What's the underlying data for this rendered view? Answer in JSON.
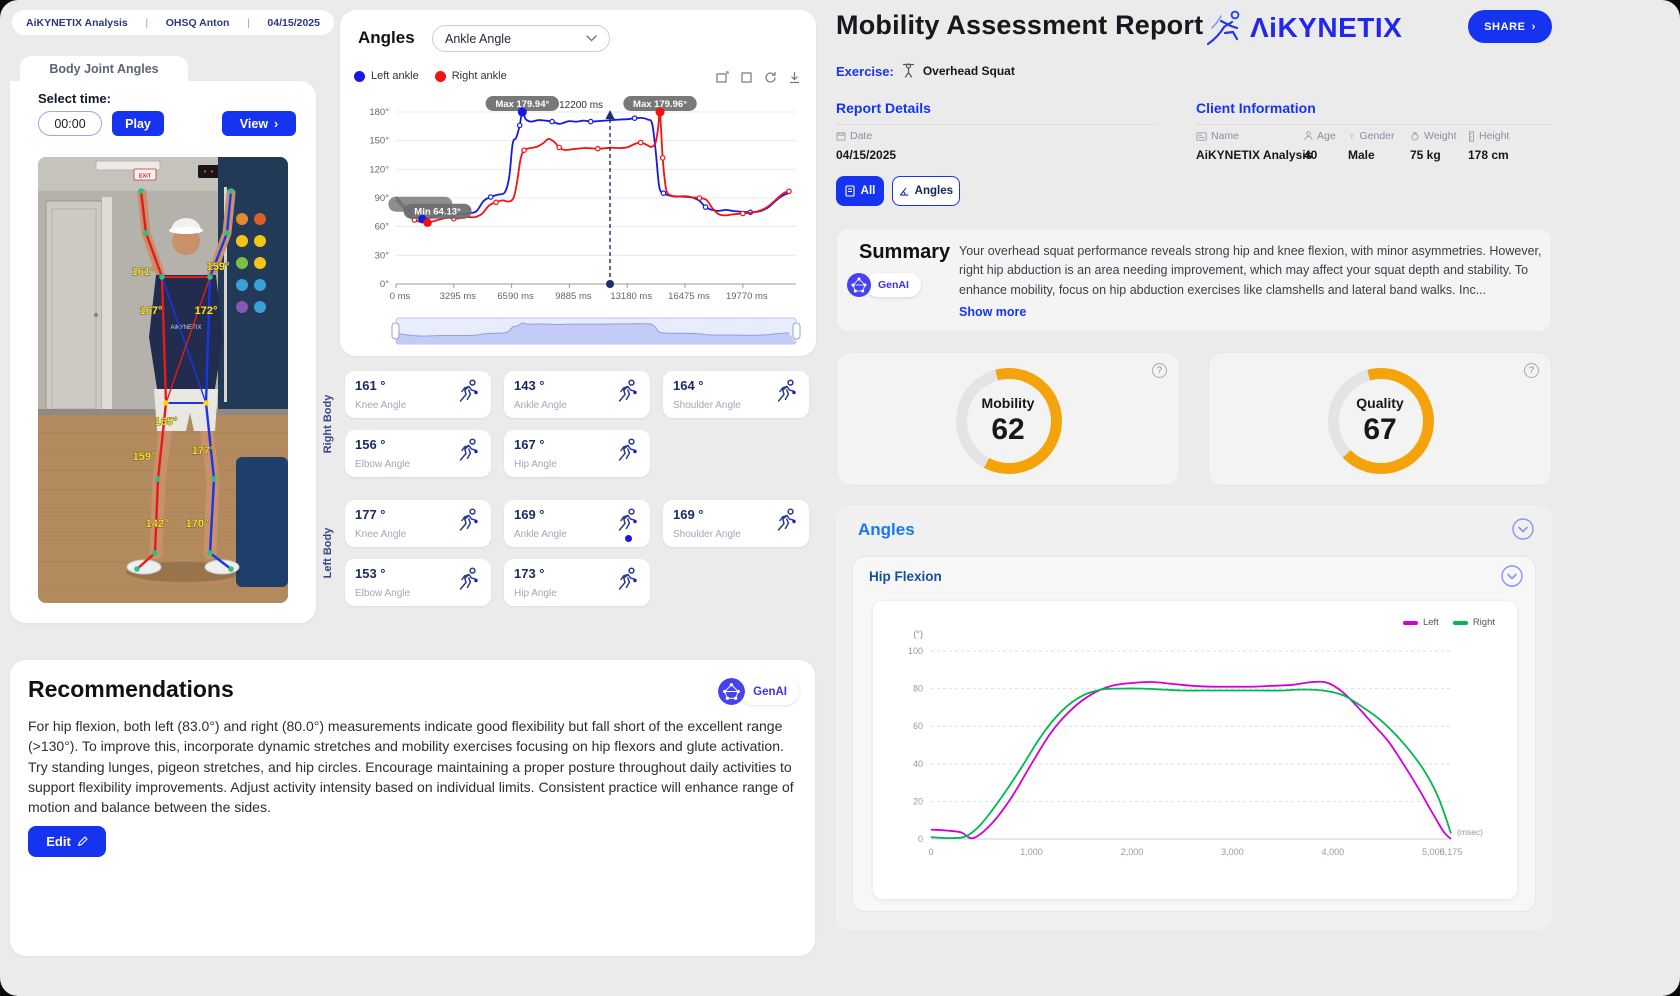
{
  "header_chip": {
    "app_name": "AiKYNETIX Analysis",
    "session": "OHSQ Anton",
    "date": "04/15/2025"
  },
  "body_joint_panel": {
    "tab": "Body Joint Angles",
    "select_time_label": "Select time:",
    "time_value": "00:00",
    "play_label": "Play",
    "view_label": "View",
    "video": {
      "shirt_text": "AiKYNETIX",
      "exit_sign": "EXIT",
      "overlay_angles": [
        "161°",
        "159°",
        "167°",
        "172°",
        "165°",
        "159°",
        "177°",
        "142°",
        "170°"
      ]
    }
  },
  "angles_panel": {
    "title": "Angles",
    "dropdown_value": "Ankle Angle",
    "legend": [
      {
        "label": "Left ankle",
        "color": "#1717e8"
      },
      {
        "label": "Right ankle",
        "color": "#f31212"
      }
    ],
    "right_body": {
      "group_label": "Right Body",
      "cards": [
        {
          "value": "161 °",
          "label": "Knee Angle"
        },
        {
          "value": "143 °",
          "label": "Ankle Angle"
        },
        {
          "value": "164 °",
          "label": "Shoulder Angle"
        },
        {
          "value": "156 °",
          "label": "Elbow Angle"
        },
        {
          "value": "167 °",
          "label": "Hip Angle"
        }
      ]
    },
    "left_body": {
      "group_label": "Left Body",
      "cards": [
        {
          "value": "177 °",
          "label": "Knee Angle"
        },
        {
          "value": "169 °",
          "label": "Ankle Angle"
        },
        {
          "value": "169 °",
          "label": "Shoulder Angle"
        },
        {
          "value": "153 °",
          "label": "Elbow Angle"
        },
        {
          "value": "173 °",
          "label": "Hip Angle"
        }
      ]
    }
  },
  "recommendations": {
    "title": "Recommendations",
    "genai_label": "GenAI",
    "text": "For hip flexion, both left (83.0°) and right (80.0°) measurements indicate good flexibility but fall short of the excellent range (>130°). To improve this, incorporate dynamic stretches and mobility exercises focusing on hip flexors and glute activation. Try standing lunges, pigeon stretches, and hip circles. Encourage maintaining a proper posture throughout daily activities to support flexibility improvements. Adjust activity intensity based on individual limits. Consistent practice will enhance range of motion and balance between the sides.",
    "edit_label": "Edit"
  },
  "report": {
    "title": "Mobility Assessment Report",
    "brand": "ΛiKYNETIX",
    "share_label": "SHARE",
    "exercise_label": "Exercise:",
    "exercise_value": "Overhead Squat",
    "details": {
      "heading": "Report Details",
      "date_label": "Date",
      "date_value": "04/15/2025"
    },
    "client": {
      "heading": "Client Information",
      "name_label": "Name",
      "name_value": "AiKYNETIX Analysis",
      "age_label": "Age",
      "age_value": "40",
      "gender_label": "Gender",
      "gender_value": "Male",
      "weight_label": "Weight",
      "weight_value": "75 kg",
      "height_label": "Height",
      "height_value": "178 cm"
    },
    "filters": {
      "all_label": "All",
      "angles_label": "Angles"
    },
    "summary": {
      "heading": "Summary",
      "genai_label": "GenAI",
      "text": "Your overhead squat performance reveals strong hip and knee flexion, with minor asymmetries. However, right hip abduction is an area needing improvement, which may affect your squat depth and stability. To enhance mobility, focus on hip abduction exercises like clamshells and lateral band walks. Inc...",
      "show_more": "Show more"
    },
    "gauges": [
      {
        "label": "Mobility",
        "value": 62
      },
      {
        "label": "Quality",
        "value": 67
      }
    ],
    "angles_section": {
      "heading": "Angles",
      "subheading": "Hip Flexion",
      "legend": [
        {
          "label": "Left",
          "color": "#d400d4"
        },
        {
          "label": "Right",
          "color": "#00b850"
        }
      ]
    }
  },
  "chart_data": [
    {
      "type": "line",
      "title": "Ankle Angle",
      "x_unit": "ms",
      "xlim": [
        0,
        22800
      ],
      "ylim": [
        0,
        180
      ],
      "x_ticks": [
        {
          "v": 0,
          "label": "0 ms"
        },
        {
          "v": 3295,
          "label": "3295 ms"
        },
        {
          "v": 6590,
          "label": "6590 ms"
        },
        {
          "v": 9885,
          "label": "9885 ms"
        },
        {
          "v": 13180,
          "label": "13180 ms"
        },
        {
          "v": 16475,
          "label": "16475 ms"
        },
        {
          "v": 19770,
          "label": "19770 ms"
        }
      ],
      "y_ticks": [
        {
          "v": 0,
          "label": "0°"
        },
        {
          "v": 30,
          "label": "30°"
        },
        {
          "v": 60,
          "label": "60°"
        },
        {
          "v": 90,
          "label": "90°"
        },
        {
          "v": 120,
          "label": "120°"
        },
        {
          "v": 150,
          "label": "150°"
        },
        {
          "v": 180,
          "label": "180°"
        }
      ],
      "annotations": {
        "max_left": {
          "label": "Max 179.94°",
          "x": 7200,
          "y": 179.94
        },
        "max_right": {
          "label": "Max 179.96°",
          "x": 15050,
          "y": 179.96
        },
        "min_right": {
          "label": "Min 64.13°",
          "x": 1800,
          "y": 64.13
        },
        "min_left": {
          "x": 1500,
          "y": 67.9
        },
        "cursor": {
          "label": "12200 ms",
          "x": 12200
        }
      },
      "series": [
        {
          "name": "Left ankle",
          "color": "#1717e8",
          "points": [
            [
              0,
              91
            ],
            [
              350,
              84
            ],
            [
              700,
              77
            ],
            [
              1050,
              71
            ],
            [
              1400,
              68.3
            ],
            [
              1500,
              67.9
            ],
            [
              1800,
              68.6
            ],
            [
              2200,
              71
            ],
            [
              2600,
              72.6
            ],
            [
              3000,
              73.2
            ],
            [
              3400,
              73.6
            ],
            [
              3800,
              73.2
            ],
            [
              4200,
              74
            ],
            [
              4600,
              76.5
            ],
            [
              5000,
              87
            ],
            [
              5400,
              91
            ],
            [
              5800,
              93.5
            ],
            [
              6200,
              96
            ],
            [
              6450,
              112
            ],
            [
              6650,
              147
            ],
            [
              6850,
              153
            ],
            [
              7050,
              166
            ],
            [
              7200,
              179.9
            ],
            [
              7400,
              172.5
            ],
            [
              7700,
              170
            ],
            [
              8100,
              171.5
            ],
            [
              8500,
              171
            ],
            [
              8900,
              170
            ],
            [
              9300,
              167.5
            ],
            [
              9600,
              169
            ],
            [
              9885,
              170.5
            ],
            [
              10300,
              170
            ],
            [
              10700,
              171
            ],
            [
              11100,
              170
            ],
            [
              11500,
              170.5
            ],
            [
              11900,
              171
            ],
            [
              12300,
              171.5
            ],
            [
              12700,
              172
            ],
            [
              13180,
              172.5
            ],
            [
              13600,
              173.5
            ],
            [
              14000,
              173.8
            ],
            [
              14350,
              172
            ],
            [
              14600,
              168
            ],
            [
              14800,
              140
            ],
            [
              15000,
              102
            ],
            [
              15250,
              95
            ],
            [
              15600,
              92.5
            ],
            [
              16000,
              91.5
            ],
            [
              16475,
              91.8
            ],
            [
              16900,
              90.5
            ],
            [
              17300,
              87
            ],
            [
              17650,
              80.5
            ],
            [
              18000,
              77.5
            ],
            [
              18400,
              76.5
            ],
            [
              18800,
              77.5
            ],
            [
              19200,
              76.5
            ],
            [
              19770,
              75.5
            ],
            [
              20200,
              75
            ],
            [
              20700,
              76
            ],
            [
              21200,
              80
            ],
            [
              21700,
              88
            ],
            [
              22100,
              93
            ],
            [
              22400,
              95
            ]
          ]
        },
        {
          "name": "Right ankle",
          "color": "#f31212",
          "points": [
            [
              0,
              88
            ],
            [
              350,
              81
            ],
            [
              700,
              72
            ],
            [
              1050,
              67
            ],
            [
              1400,
              65
            ],
            [
              1800,
              64.1
            ],
            [
              2200,
              66
            ],
            [
              2600,
              68
            ],
            [
              3000,
              69.5
            ],
            [
              3295,
              68.3
            ],
            [
              3700,
              69
            ],
            [
              4100,
              70
            ],
            [
              4500,
              70
            ],
            [
              4900,
              73.5
            ],
            [
              5300,
              82
            ],
            [
              5700,
              85.5
            ],
            [
              6100,
              87.5
            ],
            [
              6400,
              86.2
            ],
            [
              6700,
              90
            ],
            [
              6900,
              107
            ],
            [
              7100,
              131
            ],
            [
              7300,
              140
            ],
            [
              7600,
              142
            ],
            [
              8000,
              143.5
            ],
            [
              8400,
              147.5
            ],
            [
              8700,
              151.8
            ],
            [
              9000,
              149
            ],
            [
              9300,
              143
            ],
            [
              9600,
              140.2
            ],
            [
              9885,
              140.6
            ],
            [
              10300,
              141.5
            ],
            [
              10700,
              142.2
            ],
            [
              11100,
              142
            ],
            [
              11500,
              141.6
            ],
            [
              11900,
              142
            ],
            [
              12300,
              142.6
            ],
            [
              12700,
              142.2
            ],
            [
              13180,
              143
            ],
            [
              13600,
              146.5
            ],
            [
              13950,
              148
            ],
            [
              14250,
              146
            ],
            [
              14550,
              143.5
            ],
            [
              14800,
              148
            ],
            [
              14950,
              165
            ],
            [
              15050,
              179.96
            ],
            [
              15200,
              132
            ],
            [
              15400,
              99
            ],
            [
              15700,
              92.5
            ],
            [
              16000,
              91.8
            ],
            [
              16475,
              91.2
            ],
            [
              16900,
              90.6
            ],
            [
              17300,
              90
            ],
            [
              17700,
              88
            ],
            [
              18050,
              79
            ],
            [
              18400,
              73
            ],
            [
              18800,
              71.8
            ],
            [
              19200,
              72.8
            ],
            [
              19770,
              73.8
            ],
            [
              20200,
              74.5
            ],
            [
              20700,
              76.5
            ],
            [
              21200,
              81
            ],
            [
              21700,
              89
            ],
            [
              22100,
              95
            ],
            [
              22400,
              97
            ]
          ]
        }
      ]
    },
    {
      "type": "line",
      "title": "Hip Flexion",
      "ylabel": "(°)",
      "xlabel": "(msec)",
      "xlim": [
        0,
        5175
      ],
      "ylim": [
        0,
        100
      ],
      "x_ticks": [
        {
          "v": 0,
          "label": "0"
        },
        {
          "v": 1000,
          "label": "1,000"
        },
        {
          "v": 2000,
          "label": "2,000"
        },
        {
          "v": 3000,
          "label": "3,000"
        },
        {
          "v": 4000,
          "label": "4,000"
        },
        {
          "v": 5000,
          "label": "5,000"
        },
        {
          "v": 5175,
          "label": "5,175"
        }
      ],
      "y_ticks": [
        {
          "v": 0,
          "label": "0"
        },
        {
          "v": 20,
          "label": "20"
        },
        {
          "v": 40,
          "label": "40"
        },
        {
          "v": 60,
          "label": "60"
        },
        {
          "v": 80,
          "label": "80"
        },
        {
          "v": 100,
          "label": "100"
        }
      ],
      "series": [
        {
          "name": "Left",
          "color": "#d400d4",
          "points": [
            [
              0,
              5
            ],
            [
              150,
              4.5
            ],
            [
              300,
              3.5
            ],
            [
              420,
              0.5
            ],
            [
              600,
              8
            ],
            [
              800,
              22
            ],
            [
              1000,
              40
            ],
            [
              1200,
              57
            ],
            [
              1400,
              69
            ],
            [
              1600,
              77
            ],
            [
              1800,
              81.5
            ],
            [
              2000,
              83
            ],
            [
              2200,
              83.5
            ],
            [
              2400,
              82.5
            ],
            [
              2600,
              81.5
            ],
            [
              2800,
              81
            ],
            [
              3000,
              81
            ],
            [
              3200,
              81
            ],
            [
              3400,
              81.5
            ],
            [
              3600,
              82
            ],
            [
              3800,
              83.5
            ],
            [
              3950,
              83
            ],
            [
              4100,
              78
            ],
            [
              4250,
              70
            ],
            [
              4400,
              61
            ],
            [
              4550,
              52
            ],
            [
              4700,
              40
            ],
            [
              4850,
              27
            ],
            [
              5000,
              13
            ],
            [
              5100,
              4
            ],
            [
              5175,
              0
            ]
          ]
        },
        {
          "name": "Right",
          "color": "#00b850",
          "points": [
            [
              0,
              1
            ],
            [
              200,
              0.5
            ],
            [
              350,
              1.5
            ],
            [
              500,
              8
            ],
            [
              700,
              22
            ],
            [
              900,
              38
            ],
            [
              1100,
              55
            ],
            [
              1300,
              68
            ],
            [
              1500,
              76
            ],
            [
              1700,
              79.5
            ],
            [
              1900,
              80
            ],
            [
              2100,
              80
            ],
            [
              2300,
              79.5
            ],
            [
              2500,
              79
            ],
            [
              2700,
              79
            ],
            [
              2900,
              79
            ],
            [
              3100,
              79
            ],
            [
              3300,
              79
            ],
            [
              3500,
              79
            ],
            [
              3700,
              79.5
            ],
            [
              3900,
              79
            ],
            [
              4100,
              76.5
            ],
            [
              4300,
              70
            ],
            [
              4500,
              62
            ],
            [
              4700,
              51
            ],
            [
              4900,
              37
            ],
            [
              5050,
              22
            ],
            [
              5175,
              3
            ]
          ]
        }
      ]
    }
  ]
}
